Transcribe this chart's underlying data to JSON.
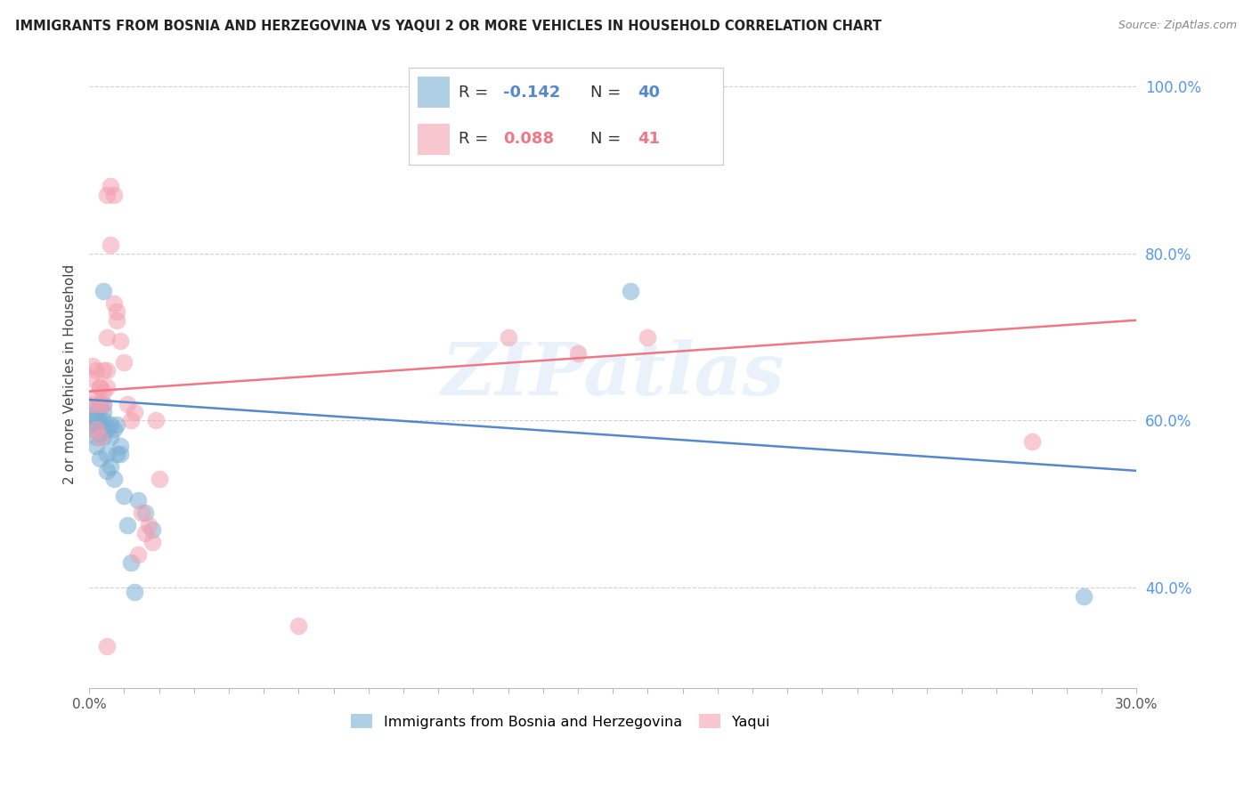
{
  "title": "IMMIGRANTS FROM BOSNIA AND HERZEGOVINA VS YAQUI 2 OR MORE VEHICLES IN HOUSEHOLD CORRELATION CHART",
  "source": "Source: ZipAtlas.com",
  "ylabel": "2 or more Vehicles in Household",
  "legend_labels": [
    "Immigrants from Bosnia and Herzegovina",
    "Yaqui"
  ],
  "blue_color": "#7BAFD4",
  "pink_color": "#F4A0B0",
  "blue_line_color": "#5588CC",
  "pink_line_color": "#EE7788",
  "x_min": 0.0,
  "x_max": 0.3,
  "y_min": 0.28,
  "y_max": 1.03,
  "watermark": "ZIPatlas",
  "blue_r": "-0.142",
  "blue_n": "40",
  "pink_r": "0.088",
  "pink_n": "41",
  "blue_scatter_x": [
    0.0005,
    0.001,
    0.001,
    0.001,
    0.002,
    0.002,
    0.002,
    0.002,
    0.002,
    0.003,
    0.003,
    0.003,
    0.003,
    0.004,
    0.004,
    0.004,
    0.004,
    0.004,
    0.004,
    0.005,
    0.005,
    0.005,
    0.006,
    0.006,
    0.006,
    0.007,
    0.007,
    0.008,
    0.008,
    0.009,
    0.009,
    0.01,
    0.011,
    0.012,
    0.013,
    0.014,
    0.016,
    0.018,
    0.155,
    0.285
  ],
  "blue_scatter_y": [
    0.595,
    0.6,
    0.59,
    0.615,
    0.61,
    0.58,
    0.605,
    0.595,
    0.57,
    0.62,
    0.6,
    0.585,
    0.555,
    0.59,
    0.6,
    0.62,
    0.58,
    0.61,
    0.755,
    0.59,
    0.56,
    0.54,
    0.58,
    0.595,
    0.545,
    0.59,
    0.53,
    0.595,
    0.56,
    0.56,
    0.57,
    0.51,
    0.475,
    0.43,
    0.395,
    0.505,
    0.49,
    0.47,
    0.755,
    0.39
  ],
  "pink_scatter_x": [
    0.0005,
    0.001,
    0.001,
    0.002,
    0.002,
    0.002,
    0.003,
    0.003,
    0.003,
    0.003,
    0.004,
    0.004,
    0.004,
    0.005,
    0.005,
    0.005,
    0.005,
    0.006,
    0.006,
    0.007,
    0.007,
    0.008,
    0.008,
    0.009,
    0.01,
    0.011,
    0.012,
    0.013,
    0.014,
    0.015,
    0.016,
    0.017,
    0.018,
    0.019,
    0.02,
    0.06,
    0.12,
    0.14,
    0.16,
    0.27,
    0.005
  ],
  "pink_scatter_y": [
    0.65,
    0.62,
    0.665,
    0.63,
    0.66,
    0.59,
    0.62,
    0.64,
    0.58,
    0.64,
    0.66,
    0.62,
    0.635,
    0.66,
    0.64,
    0.7,
    0.87,
    0.88,
    0.81,
    0.87,
    0.74,
    0.73,
    0.72,
    0.695,
    0.67,
    0.62,
    0.6,
    0.61,
    0.44,
    0.49,
    0.465,
    0.475,
    0.455,
    0.6,
    0.53,
    0.355,
    0.7,
    0.68,
    0.7,
    0.575,
    0.33
  ],
  "blue_line_x0": 0.0,
  "blue_line_x1": 0.3,
  "blue_line_y0": 0.625,
  "blue_line_y1": 0.54,
  "pink_line_x0": 0.0,
  "pink_line_x1": 0.3,
  "pink_line_y0": 0.635,
  "pink_line_y1": 0.72,
  "yticks": [
    0.4,
    0.6,
    0.8,
    1.0
  ],
  "ytick_labels": [
    "40.0%",
    "60.0%",
    "80.0%",
    "100.0%"
  ],
  "xticks": [
    0.0,
    0.05,
    0.1,
    0.15,
    0.2,
    0.25,
    0.3
  ],
  "xtick_labels_show": [
    "0.0%",
    "",
    "",
    "",
    "",
    "",
    "30.0%"
  ]
}
